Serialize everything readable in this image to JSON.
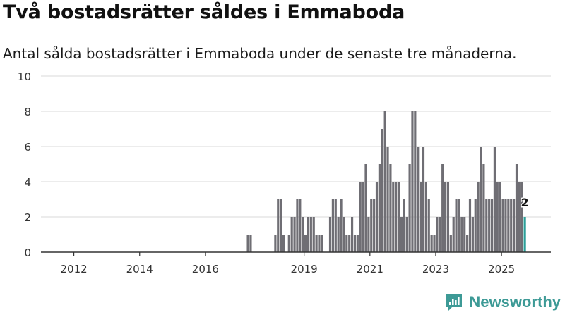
{
  "title": "Två bostadsrätter såldes i Emmaboda",
  "subtitle": "Antal sålda bostadsrätter i Emmaboda under de senaste tre månaderna.",
  "brand": {
    "name": "Newsworthy",
    "color": "#3d9a96"
  },
  "chart_data": {
    "type": "bar",
    "title": "Två bostadsrätter såldes i Emmaboda",
    "subtitle": "Antal sålda bostadsrätter i Emmaboda under de senaste tre månaderna.",
    "xlabel": "",
    "ylabel": "",
    "ylim": [
      0,
      10
    ],
    "yticks": [
      0,
      2,
      4,
      6,
      8,
      10
    ],
    "xlim": [
      "2011-01",
      "2026-07"
    ],
    "xticks": [
      "2012",
      "2014",
      "2016",
      "2019",
      "2021",
      "2023",
      "2025"
    ],
    "grid": true,
    "bar_color": "#6f6e74",
    "highlight_color": "#2b9f98",
    "highlight_label": "2",
    "series": [
      {
        "points": [
          [
            "2017-04",
            1
          ],
          [
            "2017-05",
            1
          ],
          [
            "2018-02",
            1
          ],
          [
            "2018-03",
            3
          ],
          [
            "2018-04",
            3
          ],
          [
            "2018-05",
            1
          ],
          [
            "2018-07",
            1
          ],
          [
            "2018-08",
            2
          ],
          [
            "2018-09",
            2
          ],
          [
            "2018-10",
            3
          ],
          [
            "2018-11",
            3
          ],
          [
            "2018-12",
            2
          ],
          [
            "2019-01",
            1
          ],
          [
            "2019-02",
            2
          ],
          [
            "2019-03",
            2
          ],
          [
            "2019-04",
            2
          ],
          [
            "2019-05",
            1
          ],
          [
            "2019-06",
            1
          ],
          [
            "2019-07",
            1
          ],
          [
            "2019-10",
            2
          ],
          [
            "2019-11",
            3
          ],
          [
            "2019-12",
            3
          ],
          [
            "2020-01",
            2
          ],
          [
            "2020-02",
            3
          ],
          [
            "2020-03",
            2
          ],
          [
            "2020-04",
            1
          ],
          [
            "2020-05",
            1
          ],
          [
            "2020-06",
            2
          ],
          [
            "2020-07",
            1
          ],
          [
            "2020-08",
            1
          ],
          [
            "2020-09",
            4
          ],
          [
            "2020-10",
            4
          ],
          [
            "2020-11",
            5
          ],
          [
            "2020-12",
            2
          ],
          [
            "2021-01",
            3
          ],
          [
            "2021-02",
            3
          ],
          [
            "2021-03",
            4
          ],
          [
            "2021-04",
            5
          ],
          [
            "2021-05",
            7
          ],
          [
            "2021-06",
            8
          ],
          [
            "2021-07",
            6
          ],
          [
            "2021-08",
            5
          ],
          [
            "2021-09",
            4
          ],
          [
            "2021-10",
            4
          ],
          [
            "2021-11",
            4
          ],
          [
            "2021-12",
            2
          ],
          [
            "2022-01",
            3
          ],
          [
            "2022-02",
            2
          ],
          [
            "2022-03",
            5
          ],
          [
            "2022-04",
            8
          ],
          [
            "2022-05",
            8
          ],
          [
            "2022-06",
            6
          ],
          [
            "2022-07",
            4
          ],
          [
            "2022-08",
            6
          ],
          [
            "2022-09",
            4
          ],
          [
            "2022-10",
            3
          ],
          [
            "2022-11",
            1
          ],
          [
            "2022-12",
            1
          ],
          [
            "2023-01",
            2
          ],
          [
            "2023-02",
            2
          ],
          [
            "2023-03",
            5
          ],
          [
            "2023-04",
            4
          ],
          [
            "2023-05",
            4
          ],
          [
            "2023-06",
            1
          ],
          [
            "2023-07",
            2
          ],
          [
            "2023-08",
            3
          ],
          [
            "2023-09",
            3
          ],
          [
            "2023-10",
            2
          ],
          [
            "2023-11",
            2
          ],
          [
            "2023-12",
            1
          ],
          [
            "2024-01",
            3
          ],
          [
            "2024-02",
            2
          ],
          [
            "2024-03",
            3
          ],
          [
            "2024-04",
            4
          ],
          [
            "2024-05",
            6
          ],
          [
            "2024-06",
            5
          ],
          [
            "2024-07",
            3
          ],
          [
            "2024-08",
            3
          ],
          [
            "2024-09",
            3
          ],
          [
            "2024-10",
            6
          ],
          [
            "2024-11",
            4
          ],
          [
            "2024-12",
            4
          ],
          [
            "2025-01",
            3
          ],
          [
            "2025-02",
            3
          ],
          [
            "2025-03",
            3
          ],
          [
            "2025-04",
            3
          ],
          [
            "2025-05",
            3
          ],
          [
            "2025-06",
            5
          ],
          [
            "2025-07",
            4
          ],
          [
            "2025-08",
            4
          ],
          [
            "2025-09",
            2
          ]
        ]
      }
    ]
  }
}
